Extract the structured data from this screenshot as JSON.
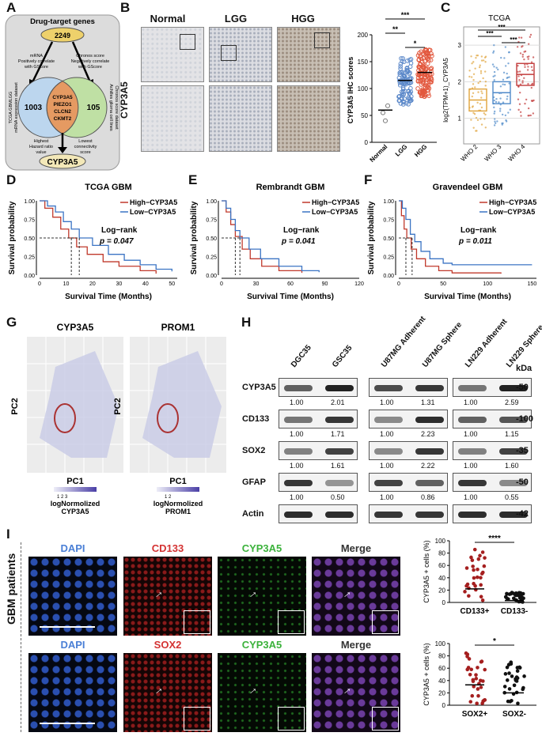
{
  "panels": {
    "A": "A",
    "B": "B",
    "C": "C",
    "D": "D",
    "E": "E",
    "F": "F",
    "G": "G",
    "H": "H",
    "I": "I"
  },
  "panelA": {
    "title": "Drug-target genes",
    "top_count": "2249",
    "left_arrow": [
      "mRNA",
      "Positively correlate",
      "with GScore"
    ],
    "right_arrow": [
      "Chronos score",
      "Negatively correlate",
      "with GScore"
    ],
    "left_side": [
      "TCGA GBMLGG",
      "mRNA expression dataset"
    ],
    "right_side": [
      "Achilles glioma cell lines",
      "Chronos score dataset"
    ],
    "left_count": "1003",
    "right_count": "105",
    "center_genes": [
      "CYP3A5",
      "PIEZO1",
      "CLCN2",
      "CKMT2"
    ],
    "bottom_left": [
      "Highest",
      "Hazard ratio",
      "value"
    ],
    "bottom_right": [
      "Lowest",
      "connectivity",
      "score"
    ],
    "result": "CYP3A5"
  },
  "panelB": {
    "headers": [
      "Normal",
      "LGG",
      "HGG"
    ],
    "row_label": "CYP3A5",
    "chart": {
      "ylabel": "CYP3A5 IHC scores",
      "categories": [
        "Normal",
        "LGG",
        "HGG"
      ],
      "yticks": [
        "0",
        "50",
        "100",
        "150",
        "200"
      ],
      "means": [
        60,
        115,
        130
      ],
      "sig": [
        "**",
        "*",
        "***"
      ]
    }
  },
  "panelC": {
    "title": "TCGA",
    "ylabel": "log2(TPM+1)_CYP3A5",
    "categories": [
      "WHO 2",
      "WHO 3",
      "WHO 4"
    ],
    "yticks": [
      "1",
      "2",
      "3"
    ],
    "sig": [
      "***",
      "***",
      "***"
    ],
    "colors": [
      "#e0a43c",
      "#4f8ac9",
      "#c23b3b"
    ]
  },
  "panelD": {
    "title": "TCGA GBM",
    "high": "High−CYP3A5",
    "low": "Low−CYP3A5",
    "logrank": "Log−rank",
    "p": "p = 0.047",
    "ylabel": "Survival probability",
    "xlabel": "Survival Time (Months)",
    "xticks": [
      "0",
      "10",
      "20",
      "30",
      "40",
      "50"
    ],
    "yticks": [
      "0.00",
      "0.25",
      "0.50",
      "0.75",
      "1.00"
    ]
  },
  "panelE": {
    "title": "Rembrandt GBM",
    "high": "High−CYP3A5",
    "low": "Low−CYP3A5",
    "logrank": "Log−rank",
    "p": "p = 0.041",
    "ylabel": "Survival probability",
    "xlabel": "Survival Time (Months)",
    "xticks": [
      "0",
      "30",
      "60",
      "90",
      "120"
    ],
    "yticks": [
      "0.00",
      "0.25",
      "0.50",
      "0.75",
      "1.00"
    ]
  },
  "panelF": {
    "title": "Gravendeel GBM",
    "high": "High−CYP3A5",
    "low": "Low−CYP3A5",
    "logrank": "Log−rank",
    "p": "p = 0.011",
    "ylabel": "Survival probability",
    "xlabel": "Survival Time (Months)",
    "xticks": [
      "0",
      "50",
      "100",
      "150"
    ],
    "yticks": [
      "0.00",
      "0.25",
      "0.50",
      "0.75",
      "1.00"
    ]
  },
  "panelG": {
    "titles": [
      "CYP3A5",
      "PROM1"
    ],
    "xlabel": "PC1",
    "ylabel": "PC2",
    "legend1": [
      "1 2 3",
      "logNormolized",
      "CYP3A5"
    ],
    "legend2": [
      "1 2",
      "logNormolized",
      "PROM1"
    ]
  },
  "panelH": {
    "groups": [
      [
        "DGC35",
        "GSC35"
      ],
      [
        "U87MG Adherent",
        "U87MG Sphere"
      ],
      [
        "LN229 Adherent",
        "LN229 Sphere"
      ]
    ],
    "kda": "kDa",
    "rows": [
      {
        "name": "CYP3A5",
        "kda": "50",
        "q": [
          "1.00",
          "2.01",
          "1.00",
          "1.31",
          "1.00",
          "2.59"
        ]
      },
      {
        "name": "CD133",
        "kda": "100",
        "q": [
          "1.00",
          "1.71",
          "1.00",
          "2.23",
          "1.00",
          "1.15"
        ]
      },
      {
        "name": "SOX2",
        "kda": "35",
        "q": [
          "1.00",
          "1.61",
          "1.00",
          "2.22",
          "1.00",
          "1.60"
        ]
      },
      {
        "name": "GFAP",
        "kda": "50",
        "q": [
          "1.00",
          "0.50",
          "1.00",
          "0.86",
          "1.00",
          "0.55"
        ]
      },
      {
        "name": "Actin",
        "kda": "42",
        "q": []
      }
    ]
  },
  "panelI": {
    "side": "GBM patients",
    "row1": [
      "DAPI",
      "CD133",
      "CYP3A5",
      "Merge"
    ],
    "row2": [
      "DAPI",
      "SOX2",
      "CYP3A5",
      "Merge"
    ],
    "chart1": {
      "ylabel": "CYP3A5 + cells (%)",
      "categories": [
        "CD133+",
        "CD133-"
      ],
      "sig": "****",
      "yticks": [
        "0",
        "20",
        "40",
        "60",
        "80",
        "100"
      ]
    },
    "chart2": {
      "ylabel": "CYP3A5 + cells (%)",
      "categories": [
        "SOX2+",
        "SOX2-"
      ],
      "sig": "*",
      "yticks": [
        "0",
        "20",
        "40",
        "60",
        "80",
        "100"
      ]
    }
  }
}
